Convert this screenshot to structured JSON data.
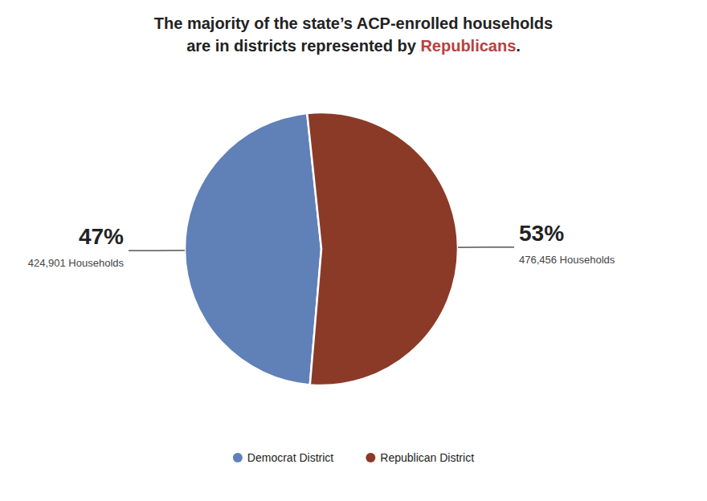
{
  "chart_data": {
    "type": "pie",
    "title": [
      [
        {
          "text": "The majority of the state’s ACP-enrolled households"
        }
      ],
      [
        {
          "text": "are in districts represented by "
        },
        {
          "text": "Republicans",
          "color": "#b94040"
        },
        {
          "text": "."
        }
      ]
    ],
    "categories": [
      "Democrat District",
      "Republican District"
    ],
    "values": [
      47,
      53
    ],
    "colors": [
      "#6080b8",
      "#8b3a28"
    ],
    "data_labels": true,
    "value_labels": [
      "47%",
      "53%"
    ],
    "annotations": [
      "424,901 Households",
      "476,456 Households"
    ],
    "legend": "bottom"
  }
}
